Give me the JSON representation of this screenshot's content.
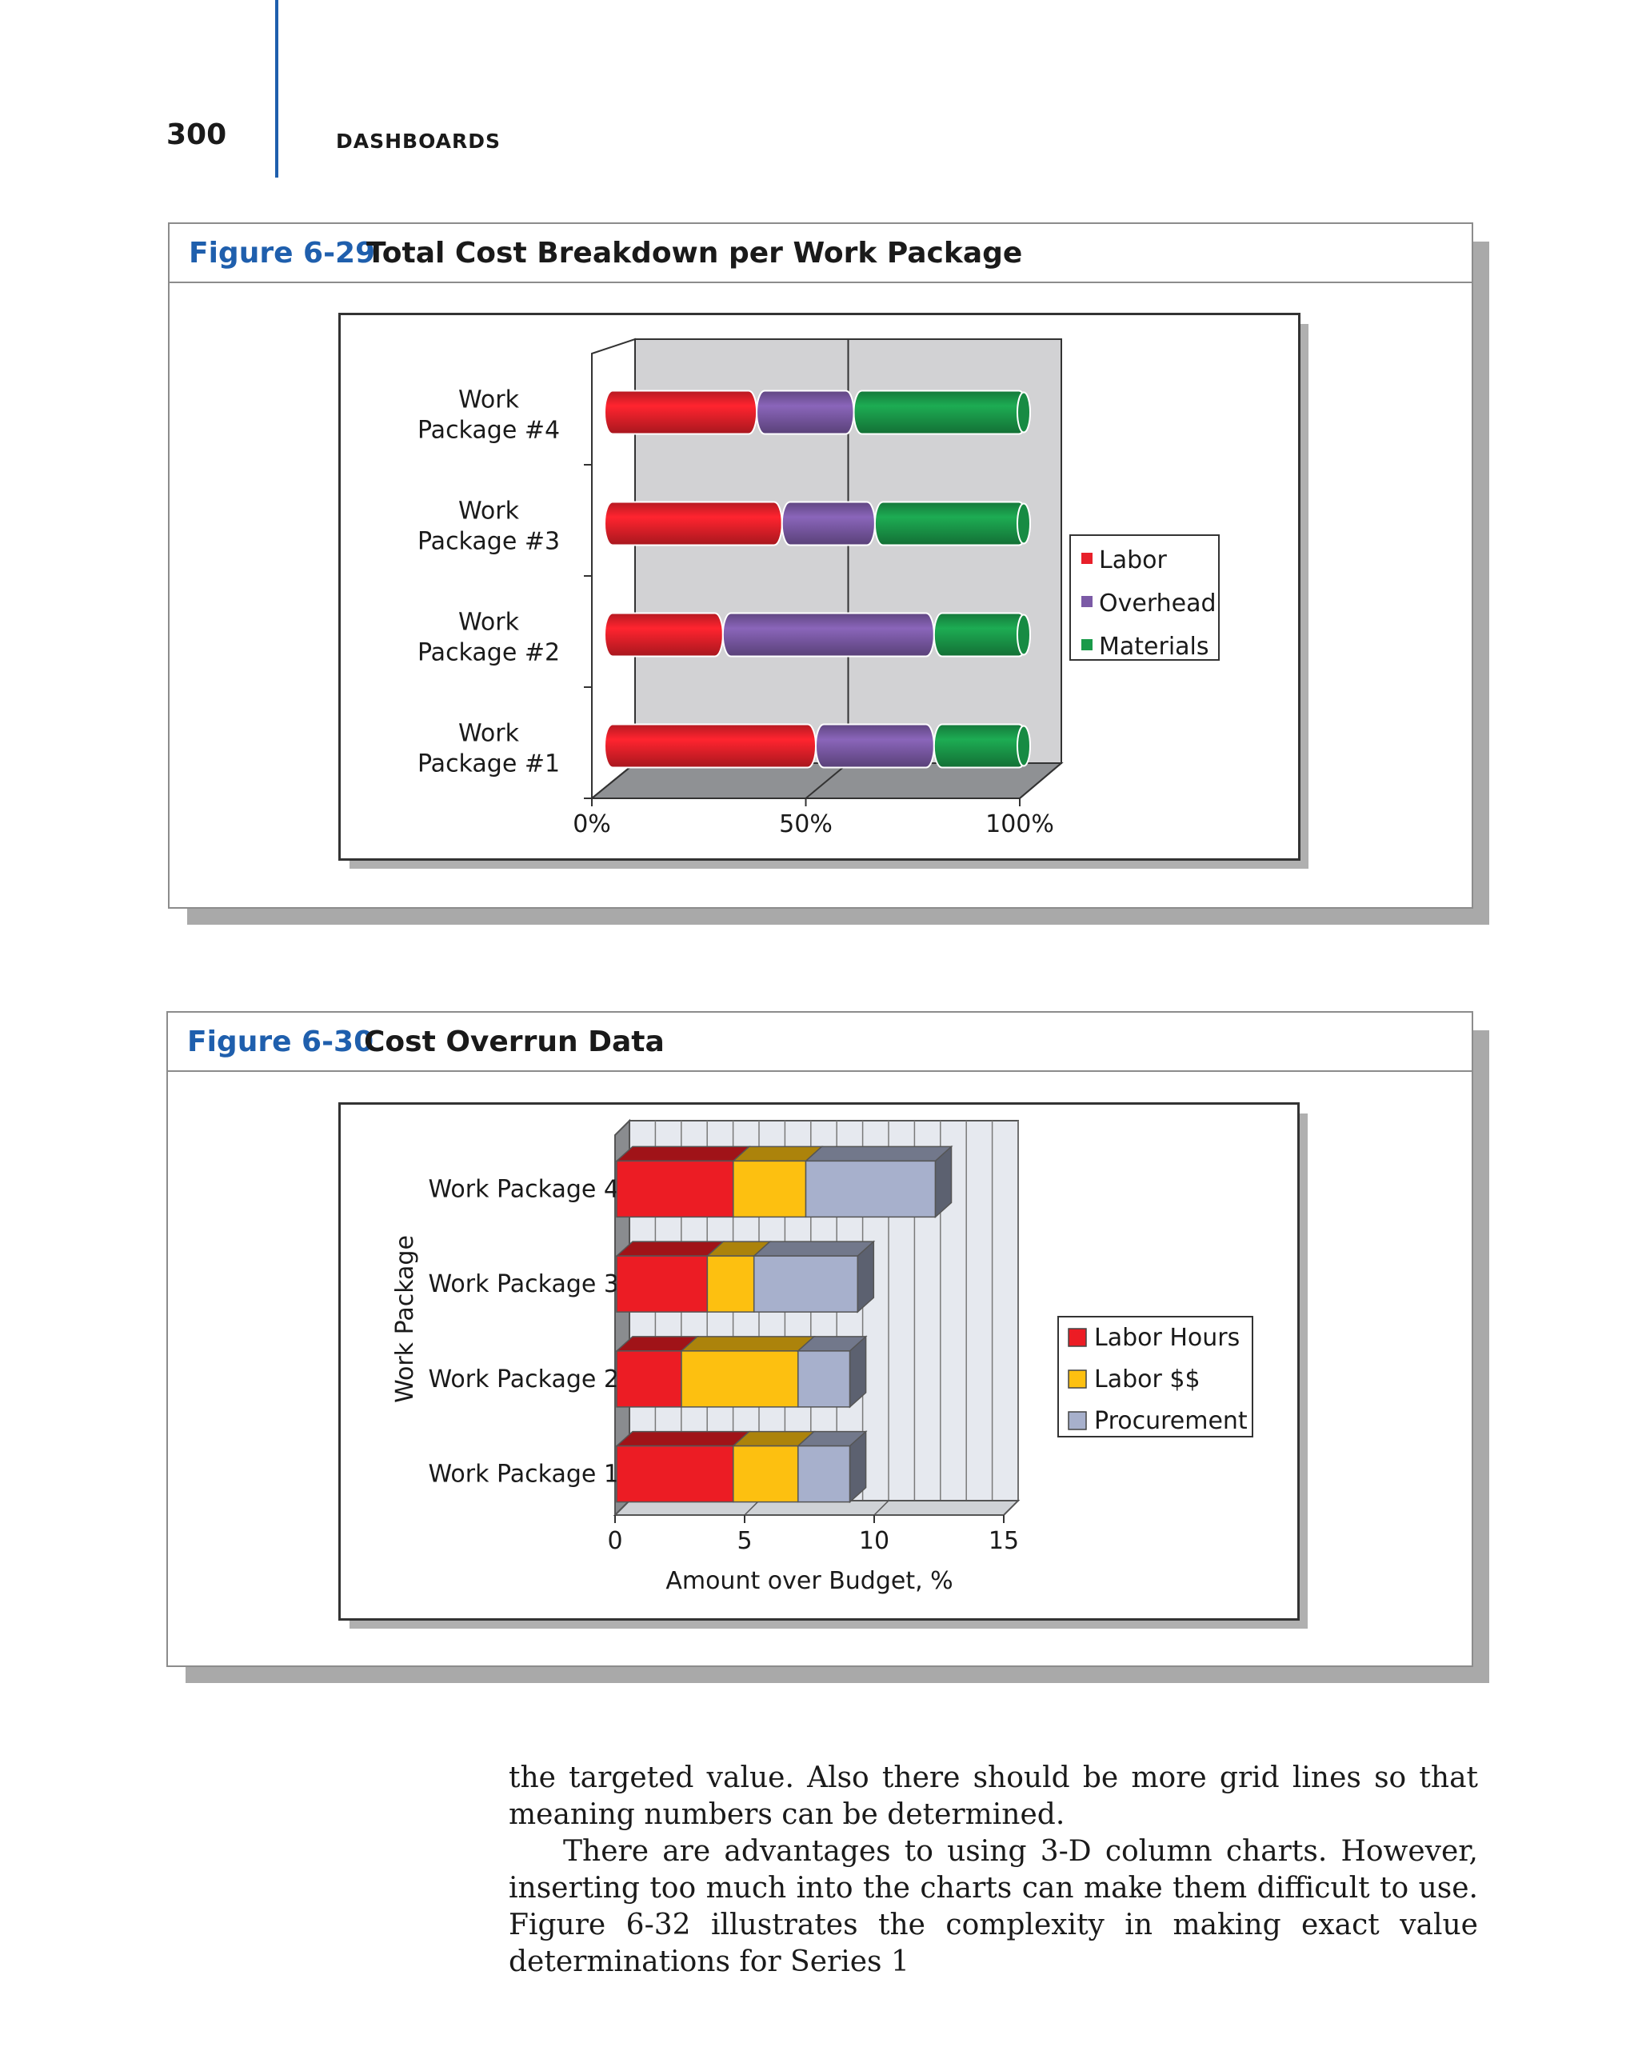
{
  "header": {
    "page_number": "300",
    "running_head": "DASHBOARDS"
  },
  "figure1": {
    "number": "Figure 6-29",
    "title": "Total Cost Breakdown per Work Package",
    "chart_data": {
      "type": "bar",
      "orientation": "horizontal",
      "stacking": "percent",
      "categories": [
        "Work Package #1",
        "Work Package #2",
        "Work Package #3",
        "Work Package #4"
      ],
      "category_labels": [
        [
          "Work",
          "Package #1"
        ],
        [
          "Work",
          "Package #2"
        ],
        [
          "Work",
          "Package #3"
        ],
        [
          "Work",
          "Package #4"
        ]
      ],
      "series": [
        {
          "name": "Labor",
          "color": "#e8202a",
          "values": [
            50,
            28,
            42,
            36
          ]
        },
        {
          "name": "Overhead",
          "color": "#7b5aa6",
          "values": [
            28,
            50,
            22,
            23
          ]
        },
        {
          "name": "Materials",
          "color": "#1a9a4a",
          "values": [
            22,
            22,
            36,
            41
          ]
        }
      ],
      "xlim": [
        0,
        100
      ],
      "xticks": [
        "0%",
        "50%",
        "100%"
      ],
      "legend_position": "right",
      "grid": true
    }
  },
  "figure2": {
    "number": "Figure 6-30",
    "title": "Cost Overrun Data",
    "chart_data": {
      "type": "bar",
      "orientation": "horizontal",
      "stacking": "stacked",
      "categories": [
        "Work Package 1",
        "Work Package 2",
        "Work Package 3",
        "Work Package 4"
      ],
      "series": [
        {
          "name": "Labor Hours",
          "color": "#ec1c24",
          "values": [
            4.5,
            2.5,
            3.5,
            4.5
          ]
        },
        {
          "name": "Labor $$",
          "color": "#fdc010",
          "values": [
            2.5,
            4.5,
            1.8,
            2.8
          ]
        },
        {
          "name": "Procurement",
          "color": "#a7b0cc",
          "values": [
            2.0,
            2.0,
            4.0,
            5.0
          ]
        }
      ],
      "xlim": [
        0,
        15
      ],
      "xticks": [
        "0",
        "5",
        "10",
        "15"
      ],
      "xlabel": "Amount over Budget, %",
      "ylabel": "Work Package",
      "legend_position": "right",
      "grid": true
    }
  },
  "body_text": {
    "p1": "the targeted value. Also there should be more grid lines so that meaning numbers can be determined.",
    "p2": "There are advantages to using 3-D column charts. However, inserting too much into the charts can make them difficult to use. Figure 6-32 illustrates the complexity in making exact value determinations for Series 1"
  }
}
